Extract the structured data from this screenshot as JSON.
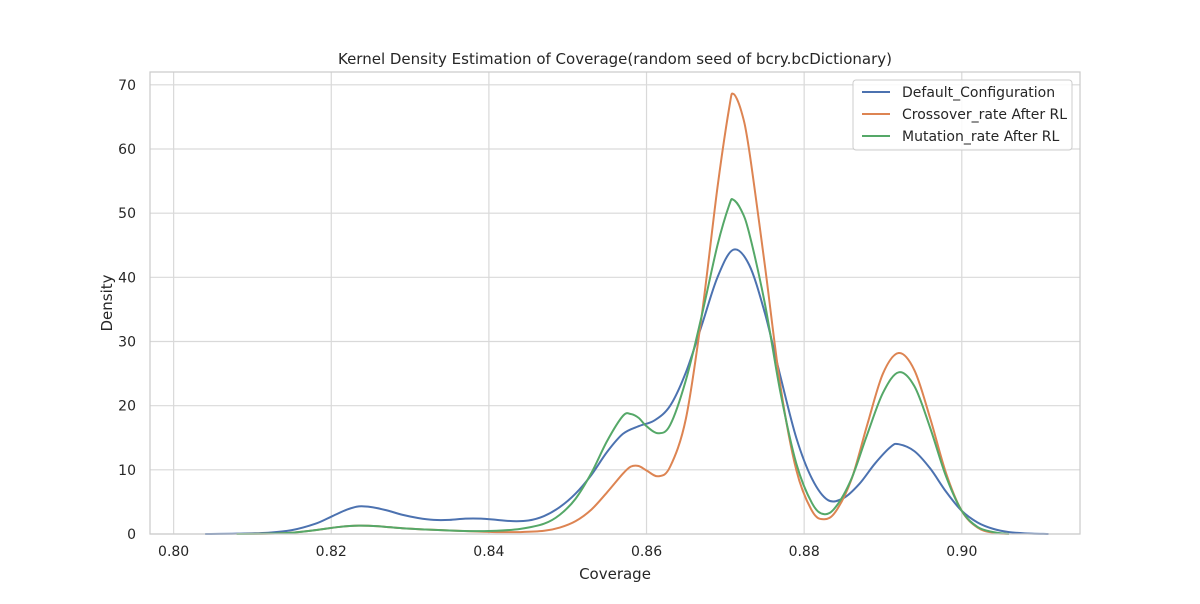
{
  "chart_data": {
    "type": "line",
    "title": "Kernel Density Estimation of Coverage(random seed of bcry.bcDictionary)",
    "xlabel": "Coverage",
    "ylabel": "Density",
    "xlim": [
      0.797,
      0.915
    ],
    "ylim": [
      0,
      72
    ],
    "x_ticks": [
      0.8,
      0.82,
      0.84,
      0.86,
      0.88,
      0.9
    ],
    "x_tick_labels": [
      "0.80",
      "0.82",
      "0.84",
      "0.86",
      "0.88",
      "0.90"
    ],
    "y_ticks": [
      0,
      10,
      20,
      30,
      40,
      50,
      60,
      70
    ],
    "y_tick_labels": [
      "0",
      "10",
      "20",
      "30",
      "40",
      "50",
      "60",
      "70"
    ],
    "grid": true,
    "legend_position": "top-right",
    "series": [
      {
        "name": "Default_Configuration",
        "color": "#4c72b0",
        "points": [
          [
            0.804,
            0.0
          ],
          [
            0.808,
            0.05
          ],
          [
            0.812,
            0.2
          ],
          [
            0.815,
            0.6
          ],
          [
            0.818,
            1.6
          ],
          [
            0.82,
            2.7
          ],
          [
            0.822,
            3.8
          ],
          [
            0.8235,
            4.3
          ],
          [
            0.825,
            4.2
          ],
          [
            0.827,
            3.7
          ],
          [
            0.829,
            3.0
          ],
          [
            0.831,
            2.5
          ],
          [
            0.833,
            2.2
          ],
          [
            0.835,
            2.2
          ],
          [
            0.837,
            2.4
          ],
          [
            0.839,
            2.4
          ],
          [
            0.841,
            2.2
          ],
          [
            0.843,
            2.0
          ],
          [
            0.845,
            2.1
          ],
          [
            0.847,
            2.8
          ],
          [
            0.849,
            4.2
          ],
          [
            0.851,
            6.3
          ],
          [
            0.853,
            9.2
          ],
          [
            0.855,
            12.8
          ],
          [
            0.857,
            15.6
          ],
          [
            0.859,
            16.8
          ],
          [
            0.861,
            17.7
          ],
          [
            0.863,
            20.0
          ],
          [
            0.865,
            25.2
          ],
          [
            0.867,
            32.5
          ],
          [
            0.869,
            40.0
          ],
          [
            0.871,
            44.3
          ],
          [
            0.873,
            42.0
          ],
          [
            0.875,
            34.5
          ],
          [
            0.877,
            24.5
          ],
          [
            0.879,
            15.0
          ],
          [
            0.881,
            8.6
          ],
          [
            0.883,
            5.3
          ],
          [
            0.885,
            5.6
          ],
          [
            0.887,
            7.8
          ],
          [
            0.889,
            11.0
          ],
          [
            0.891,
            13.6
          ],
          [
            0.892,
            14.0
          ],
          [
            0.894,
            12.9
          ],
          [
            0.896,
            10.2
          ],
          [
            0.898,
            6.6
          ],
          [
            0.9,
            3.6
          ],
          [
            0.902,
            1.8
          ],
          [
            0.904,
            0.8
          ],
          [
            0.906,
            0.3
          ],
          [
            0.908,
            0.1
          ],
          [
            0.911,
            0.0
          ]
        ]
      },
      {
        "name": "Crossover_rate After RL",
        "color": "#dd8452",
        "points": [
          [
            0.808,
            0.0
          ],
          [
            0.812,
            0.05
          ],
          [
            0.815,
            0.2
          ],
          [
            0.818,
            0.6
          ],
          [
            0.821,
            1.1
          ],
          [
            0.8235,
            1.3
          ],
          [
            0.826,
            1.2
          ],
          [
            0.829,
            0.9
          ],
          [
            0.832,
            0.7
          ],
          [
            0.835,
            0.55
          ],
          [
            0.838,
            0.4
          ],
          [
            0.841,
            0.3
          ],
          [
            0.844,
            0.3
          ],
          [
            0.847,
            0.5
          ],
          [
            0.849,
            1.0
          ],
          [
            0.851,
            2.0
          ],
          [
            0.853,
            3.8
          ],
          [
            0.855,
            6.5
          ],
          [
            0.857,
            9.4
          ],
          [
            0.858,
            10.5
          ],
          [
            0.859,
            10.6
          ],
          [
            0.86,
            9.9
          ],
          [
            0.8615,
            9.0
          ],
          [
            0.863,
            10.5
          ],
          [
            0.865,
            18.0
          ],
          [
            0.867,
            34.0
          ],
          [
            0.869,
            54.0
          ],
          [
            0.8705,
            66.5
          ],
          [
            0.871,
            68.6
          ],
          [
            0.872,
            66.0
          ],
          [
            0.873,
            60.0
          ],
          [
            0.875,
            42.0
          ],
          [
            0.877,
            23.0
          ],
          [
            0.879,
            10.0
          ],
          [
            0.881,
            3.6
          ],
          [
            0.8825,
            2.3
          ],
          [
            0.884,
            3.5
          ],
          [
            0.886,
            8.5
          ],
          [
            0.888,
            17.0
          ],
          [
            0.89,
            25.0
          ],
          [
            0.892,
            28.2
          ],
          [
            0.894,
            25.5
          ],
          [
            0.896,
            18.0
          ],
          [
            0.898,
            9.5
          ],
          [
            0.9,
            3.6
          ],
          [
            0.902,
            1.0
          ],
          [
            0.904,
            0.2
          ],
          [
            0.906,
            0.0
          ]
        ]
      },
      {
        "name": "Mutation_rate After RL",
        "color": "#55a868",
        "points": [
          [
            0.808,
            0.0
          ],
          [
            0.812,
            0.05
          ],
          [
            0.815,
            0.2
          ],
          [
            0.818,
            0.6
          ],
          [
            0.821,
            1.1
          ],
          [
            0.8235,
            1.3
          ],
          [
            0.826,
            1.2
          ],
          [
            0.829,
            0.9
          ],
          [
            0.832,
            0.7
          ],
          [
            0.835,
            0.55
          ],
          [
            0.838,
            0.45
          ],
          [
            0.841,
            0.5
          ],
          [
            0.844,
            0.8
          ],
          [
            0.847,
            1.6
          ],
          [
            0.849,
            3.0
          ],
          [
            0.851,
            5.5
          ],
          [
            0.853,
            9.5
          ],
          [
            0.855,
            14.5
          ],
          [
            0.857,
            18.4
          ],
          [
            0.858,
            18.7
          ],
          [
            0.859,
            18.1
          ],
          [
            0.86,
            16.8
          ],
          [
            0.8615,
            15.7
          ],
          [
            0.863,
            17.0
          ],
          [
            0.865,
            24.0
          ],
          [
            0.867,
            34.0
          ],
          [
            0.869,
            45.0
          ],
          [
            0.8705,
            51.3
          ],
          [
            0.871,
            52.1
          ],
          [
            0.872,
            50.5
          ],
          [
            0.873,
            47.0
          ],
          [
            0.875,
            36.0
          ],
          [
            0.877,
            22.0
          ],
          [
            0.879,
            11.0
          ],
          [
            0.881,
            4.8
          ],
          [
            0.8825,
            3.1
          ],
          [
            0.884,
            4.2
          ],
          [
            0.886,
            8.6
          ],
          [
            0.888,
            15.5
          ],
          [
            0.89,
            22.0
          ],
          [
            0.892,
            25.2
          ],
          [
            0.894,
            23.0
          ],
          [
            0.896,
            16.5
          ],
          [
            0.898,
            9.0
          ],
          [
            0.9,
            3.6
          ],
          [
            0.902,
            1.1
          ],
          [
            0.904,
            0.3
          ],
          [
            0.906,
            0.0
          ]
        ]
      }
    ]
  }
}
